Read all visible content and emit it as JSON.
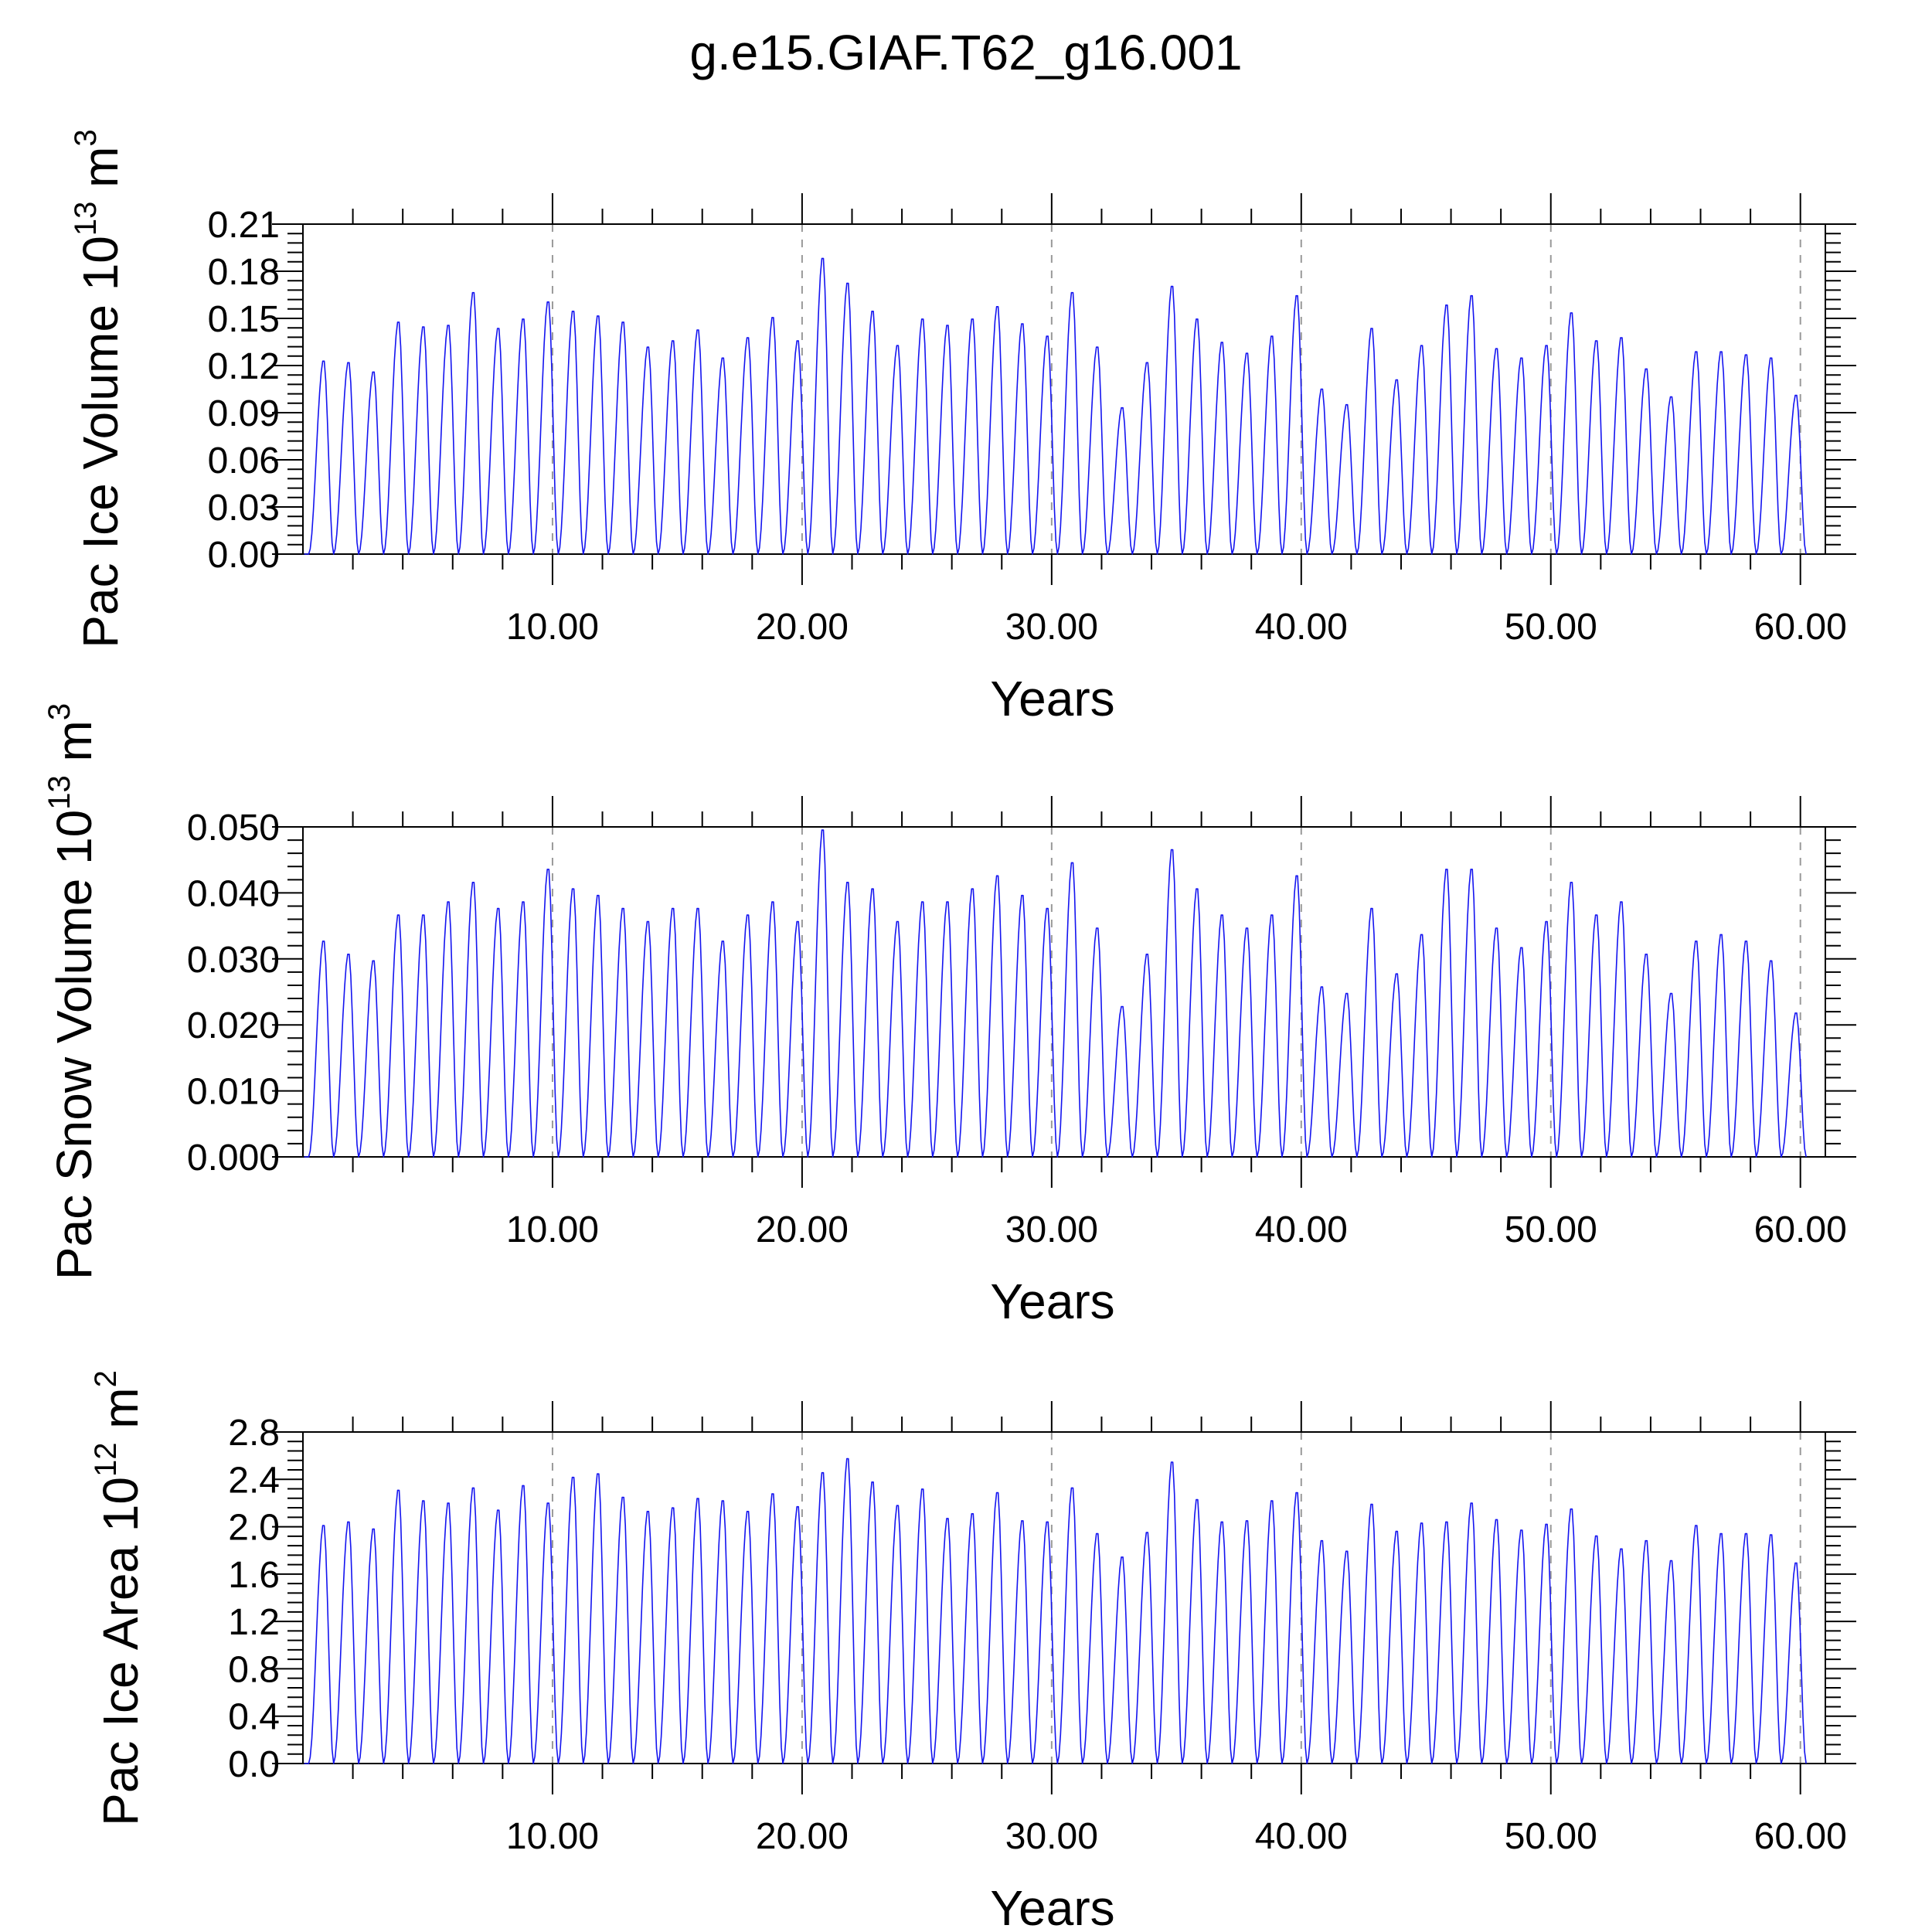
{
  "title": "g.e15.GIAF.T62_g16.001",
  "colors": {
    "series": "#1414f0",
    "axis": "#000000",
    "grid": "#999999"
  },
  "chart_data": [
    {
      "type": "line",
      "ylabel": "Pac Ice Volume 10",
      "ylabel_exp": "13",
      "ylabel_unit": "m",
      "ylabel_unit_exp": "3",
      "xlabel": "Years",
      "xlim": [
        0.0,
        61.0
      ],
      "ylim": [
        0.0,
        0.21
      ],
      "xticks": [
        "10.00",
        "20.00",
        "30.00",
        "40.00",
        "50.00",
        "60.00"
      ],
      "yticks": [
        "0.00",
        "0.03",
        "0.06",
        "0.09",
        "0.12",
        "0.15",
        "0.18",
        "0.21"
      ],
      "grid": "vertical-dashed",
      "series": [
        {
          "x": [
            0.83,
            1.83,
            2.83,
            3.83,
            4.83,
            5.83,
            6.83,
            7.83,
            8.83,
            9.83,
            10.83,
            11.83,
            12.83,
            13.83,
            14.83,
            15.83,
            16.83,
            17.83,
            18.83,
            19.83,
            20.83,
            21.83,
            22.83,
            23.83,
            24.83,
            25.83,
            26.83,
            27.83,
            28.83,
            29.83,
            30.83,
            31.83,
            32.83,
            33.83,
            34.83,
            35.83,
            36.83,
            37.83,
            38.83,
            39.83,
            40.83,
            41.83,
            42.83,
            43.83,
            44.83,
            45.83,
            46.83,
            47.83,
            48.83,
            49.83,
            50.83,
            51.83,
            52.83,
            53.83,
            54.83,
            55.83,
            56.83,
            57.83,
            58.83,
            59.83
          ],
          "y": [
            0.124,
            0.123,
            0.117,
            0.149,
            0.146,
            0.147,
            0.168,
            0.145,
            0.151,
            0.162,
            0.156,
            0.153,
            0.149,
            0.133,
            0.137,
            0.144,
            0.126,
            0.139,
            0.152,
            0.137,
            0.19,
            0.174,
            0.156,
            0.134,
            0.151,
            0.147,
            0.151,
            0.159,
            0.148,
            0.14,
            0.168,
            0.133,
            0.094,
            0.123,
            0.172,
            0.151,
            0.136,
            0.129,
            0.14,
            0.166,
            0.106,
            0.096,
            0.145,
            0.112,
            0.134,
            0.16,
            0.166,
            0.132,
            0.126,
            0.134,
            0.155,
            0.137,
            0.139,
            0.119,
            0.101,
            0.13,
            0.13,
            0.128,
            0.126,
            0.102
          ]
        }
      ]
    },
    {
      "type": "line",
      "ylabel": "Pac Snow Volume 10",
      "ylabel_exp": "13",
      "ylabel_unit": "m",
      "ylabel_unit_exp": "3",
      "xlabel": "Years",
      "xlim": [
        0.0,
        61.0
      ],
      "ylim": [
        0.0,
        0.05
      ],
      "xticks": [
        "10.00",
        "20.00",
        "30.00",
        "40.00",
        "50.00",
        "60.00"
      ],
      "yticks": [
        "0.000",
        "0.010",
        "0.020",
        "0.030",
        "0.040",
        "0.050"
      ],
      "grid": "vertical-dashed",
      "series": [
        {
          "x": [
            0.83,
            1.83,
            2.83,
            3.83,
            4.83,
            5.83,
            6.83,
            7.83,
            8.83,
            9.83,
            10.83,
            11.83,
            12.83,
            13.83,
            14.83,
            15.83,
            16.83,
            17.83,
            18.83,
            19.83,
            20.83,
            21.83,
            22.83,
            23.83,
            24.83,
            25.83,
            26.83,
            27.83,
            28.83,
            29.83,
            30.83,
            31.83,
            32.83,
            33.83,
            34.83,
            35.83,
            36.83,
            37.83,
            38.83,
            39.83,
            40.83,
            41.83,
            42.83,
            43.83,
            44.83,
            45.83,
            46.83,
            47.83,
            48.83,
            49.83,
            50.83,
            51.83,
            52.83,
            53.83,
            54.83,
            55.83,
            56.83,
            57.83,
            58.83,
            59.83
          ],
          "y": [
            0.033,
            0.031,
            0.03,
            0.037,
            0.037,
            0.039,
            0.042,
            0.038,
            0.039,
            0.044,
            0.041,
            0.04,
            0.038,
            0.036,
            0.038,
            0.038,
            0.033,
            0.037,
            0.039,
            0.036,
            0.05,
            0.042,
            0.041,
            0.036,
            0.039,
            0.039,
            0.041,
            0.043,
            0.04,
            0.038,
            0.045,
            0.035,
            0.023,
            0.031,
            0.047,
            0.041,
            0.037,
            0.035,
            0.037,
            0.043,
            0.026,
            0.025,
            0.038,
            0.028,
            0.034,
            0.044,
            0.044,
            0.035,
            0.032,
            0.036,
            0.042,
            0.037,
            0.039,
            0.031,
            0.025,
            0.033,
            0.034,
            0.033,
            0.03,
            0.022
          ]
        }
      ]
    },
    {
      "type": "line",
      "ylabel": "Pac Ice Area 10",
      "ylabel_exp": "12",
      "ylabel_unit": "m",
      "ylabel_unit_exp": "2",
      "xlabel": "Years",
      "xlim": [
        0.0,
        61.0
      ],
      "ylim": [
        0.0,
        2.8
      ],
      "xticks": [
        "10.00",
        "20.00",
        "30.00",
        "40.00",
        "50.00",
        "60.00"
      ],
      "yticks": [
        "0.0",
        "0.4",
        "0.8",
        "1.2",
        "1.6",
        "2.0",
        "2.4",
        "2.8"
      ],
      "grid": "vertical-dashed",
      "series": [
        {
          "x": [
            0.83,
            1.83,
            2.83,
            3.83,
            4.83,
            5.83,
            6.83,
            7.83,
            8.83,
            9.83,
            10.83,
            11.83,
            12.83,
            13.83,
            14.83,
            15.83,
            16.83,
            17.83,
            18.83,
            19.83,
            20.83,
            21.83,
            22.83,
            23.83,
            24.83,
            25.83,
            26.83,
            27.83,
            28.83,
            29.83,
            30.83,
            31.83,
            32.83,
            33.83,
            34.83,
            35.83,
            36.83,
            37.83,
            38.83,
            39.83,
            40.83,
            41.83,
            42.83,
            43.83,
            44.83,
            45.83,
            46.83,
            47.83,
            48.83,
            49.83,
            50.83,
            51.83,
            52.83,
            53.83,
            54.83,
            55.83,
            56.83,
            57.83,
            58.83,
            59.83
          ],
          "y": [
            2.03,
            2.06,
            2.0,
            2.33,
            2.24,
            2.22,
            2.35,
            2.16,
            2.37,
            2.22,
            2.44,
            2.47,
            2.27,
            2.15,
            2.18,
            2.26,
            2.24,
            2.15,
            2.3,
            2.19,
            2.48,
            2.6,
            2.4,
            2.2,
            2.34,
            2.09,
            2.13,
            2.31,
            2.07,
            2.06,
            2.35,
            1.96,
            1.76,
            1.97,
            2.57,
            2.25,
            2.06,
            2.07,
            2.24,
            2.31,
            1.9,
            1.81,
            2.21,
            1.98,
            2.05,
            2.06,
            2.22,
            2.08,
            1.99,
            2.04,
            2.17,
            1.94,
            1.83,
            1.9,
            1.73,
            2.03,
            1.96,
            1.96,
            1.95,
            1.71
          ]
        }
      ]
    }
  ]
}
